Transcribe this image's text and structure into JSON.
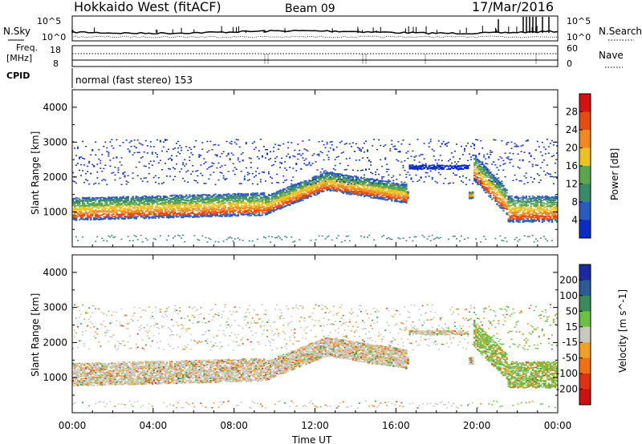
{
  "header": {
    "station": "Hokkaido West (fitACF)",
    "beam": "Beam 09",
    "date": "17/Mar/2016"
  },
  "top_panels": {
    "nsky_label": "N.Sky",
    "nsearch_label": "N.Search",
    "freq_label_line1": "Freq.",
    "freq_label_line2": "[MHz]",
    "nave_label": "Nave",
    "cpid_label": "CPID",
    "noise_tick_high": "10^5",
    "noise_tick_low": "10^0",
    "freq_tick_high": "18",
    "freq_tick_low": "8",
    "nave_tick_high": "60",
    "nave_tick_low": "0",
    "cpid_text": "normal (fast stereo) 153"
  },
  "chart_data": [
    {
      "type": "heatmap",
      "title": "",
      "xlabel": "",
      "ylabel": "Slant Range [km]",
      "xlim": [
        0,
        24
      ],
      "ylim": [
        0,
        4500
      ],
      "yticks": [
        "1000",
        "2000",
        "3000",
        "4000"
      ],
      "colorbar": {
        "label": "Power [dB]",
        "ticks": [
          "4",
          "8",
          "12",
          "16",
          "20",
          "24",
          "28"
        ],
        "colors": [
          "#0a2cc8",
          "#2a5cc0",
          "#3a8a6a",
          "#5aa84a",
          "#f0c020",
          "#f08a20",
          "#e84a10",
          "#d81010"
        ]
      },
      "features": [
        {
          "name": "main echo band",
          "x": [
            0,
            9.5
          ],
          "y_center": 1100,
          "y_width": 600
        },
        {
          "name": "rising arc",
          "x": [
            9.5,
            16.5
          ],
          "y_center": 1700,
          "y_width": 500
        },
        {
          "name": "evening band",
          "x": [
            19.8,
            24
          ],
          "y_center": 1200,
          "y_width": 700
        }
      ]
    },
    {
      "type": "heatmap",
      "title": "",
      "xlabel": "Time UT",
      "ylabel": "Slant Range [km]",
      "xlim": [
        0,
        24
      ],
      "ylim": [
        0,
        4500
      ],
      "yticks": [
        "1000",
        "2000",
        "3000",
        "4000"
      ],
      "xticks": [
        "00:00",
        "04:00",
        "08:00",
        "12:00",
        "16:00",
        "20:00",
        "00:00"
      ],
      "colorbar": {
        "label": "Velocity [m s^-1]",
        "ticks": [
          "200",
          "100",
          "50",
          "15",
          "-15",
          "-50",
          "-100",
          "-200"
        ],
        "colors": [
          "#1a2aa0",
          "#2a5a9a",
          "#3a8a5a",
          "#6ac040",
          "#c8c8c0",
          "#f0a020",
          "#f07010",
          "#e03010",
          "#d01010"
        ]
      }
    }
  ]
}
